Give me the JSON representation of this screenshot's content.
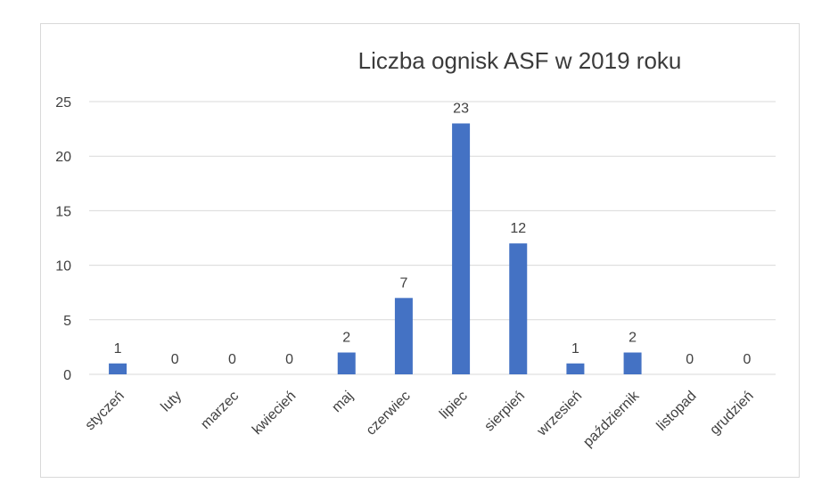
{
  "chart_data": {
    "type": "bar",
    "title": "Liczba ognisk ASF w 2019 roku",
    "xlabel": "",
    "ylabel": "",
    "ylim": [
      0,
      25
    ],
    "yticks": [
      "0",
      "5",
      "10",
      "15",
      "20",
      "25"
    ],
    "grid": true,
    "bar_color": "#4472c4",
    "categories": [
      "styczeń",
      "luty",
      "marzec",
      "kwiecień",
      "maj",
      "czerwiec",
      "lipiec",
      "sierpień",
      "wrzesień",
      "październik",
      "listopad",
      "grudzień"
    ],
    "values": [
      1,
      0,
      0,
      0,
      2,
      7,
      23,
      12,
      1,
      2,
      0,
      0
    ],
    "data_labels": [
      "1",
      "0",
      "0",
      "0",
      "2",
      "7",
      "23",
      "12",
      "1",
      "2",
      "0",
      "0"
    ]
  }
}
